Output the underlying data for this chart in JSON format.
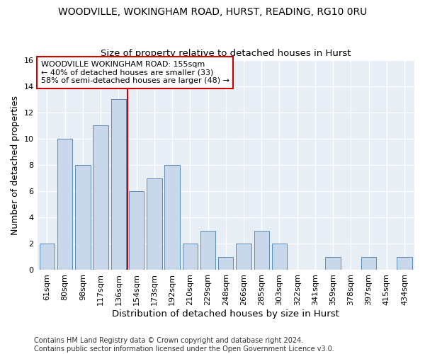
{
  "title": "WOODVILLE, WOKINGHAM ROAD, HURST, READING, RG10 0RU",
  "subtitle": "Size of property relative to detached houses in Hurst",
  "xlabel": "Distribution of detached houses by size in Hurst",
  "ylabel": "Number of detached properties",
  "categories": [
    "61sqm",
    "80sqm",
    "98sqm",
    "117sqm",
    "136sqm",
    "154sqm",
    "173sqm",
    "192sqm",
    "210sqm",
    "229sqm",
    "248sqm",
    "266sqm",
    "285sqm",
    "303sqm",
    "322sqm",
    "341sqm",
    "359sqm",
    "378sqm",
    "397sqm",
    "415sqm",
    "434sqm"
  ],
  "values": [
    2,
    10,
    8,
    11,
    13,
    6,
    7,
    8,
    2,
    3,
    1,
    2,
    3,
    2,
    0,
    0,
    1,
    0,
    1,
    0,
    1
  ],
  "bar_color": "#c8d8ea",
  "bar_edge_color": "#5b8db8",
  "vline_x": 4.5,
  "vline_color": "#cc0000",
  "annotation_text": "WOODVILLE WOKINGHAM ROAD: 155sqm\n← 40% of detached houses are smaller (33)\n58% of semi-detached houses are larger (48) →",
  "annotation_box_color": "#ffffff",
  "annotation_box_edge": "#cc0000",
  "ylim": [
    0,
    16
  ],
  "yticks": [
    0,
    2,
    4,
    6,
    8,
    10,
    12,
    14,
    16
  ],
  "footer": "Contains HM Land Registry data © Crown copyright and database right 2024.\nContains public sector information licensed under the Open Government Licence v3.0.",
  "title_fontsize": 10,
  "subtitle_fontsize": 9.5,
  "ylabel_fontsize": 9,
  "xlabel_fontsize": 9.5,
  "tick_fontsize": 8,
  "footer_fontsize": 7,
  "background_color": "#ffffff",
  "plot_bg_color": "#e8eef5"
}
